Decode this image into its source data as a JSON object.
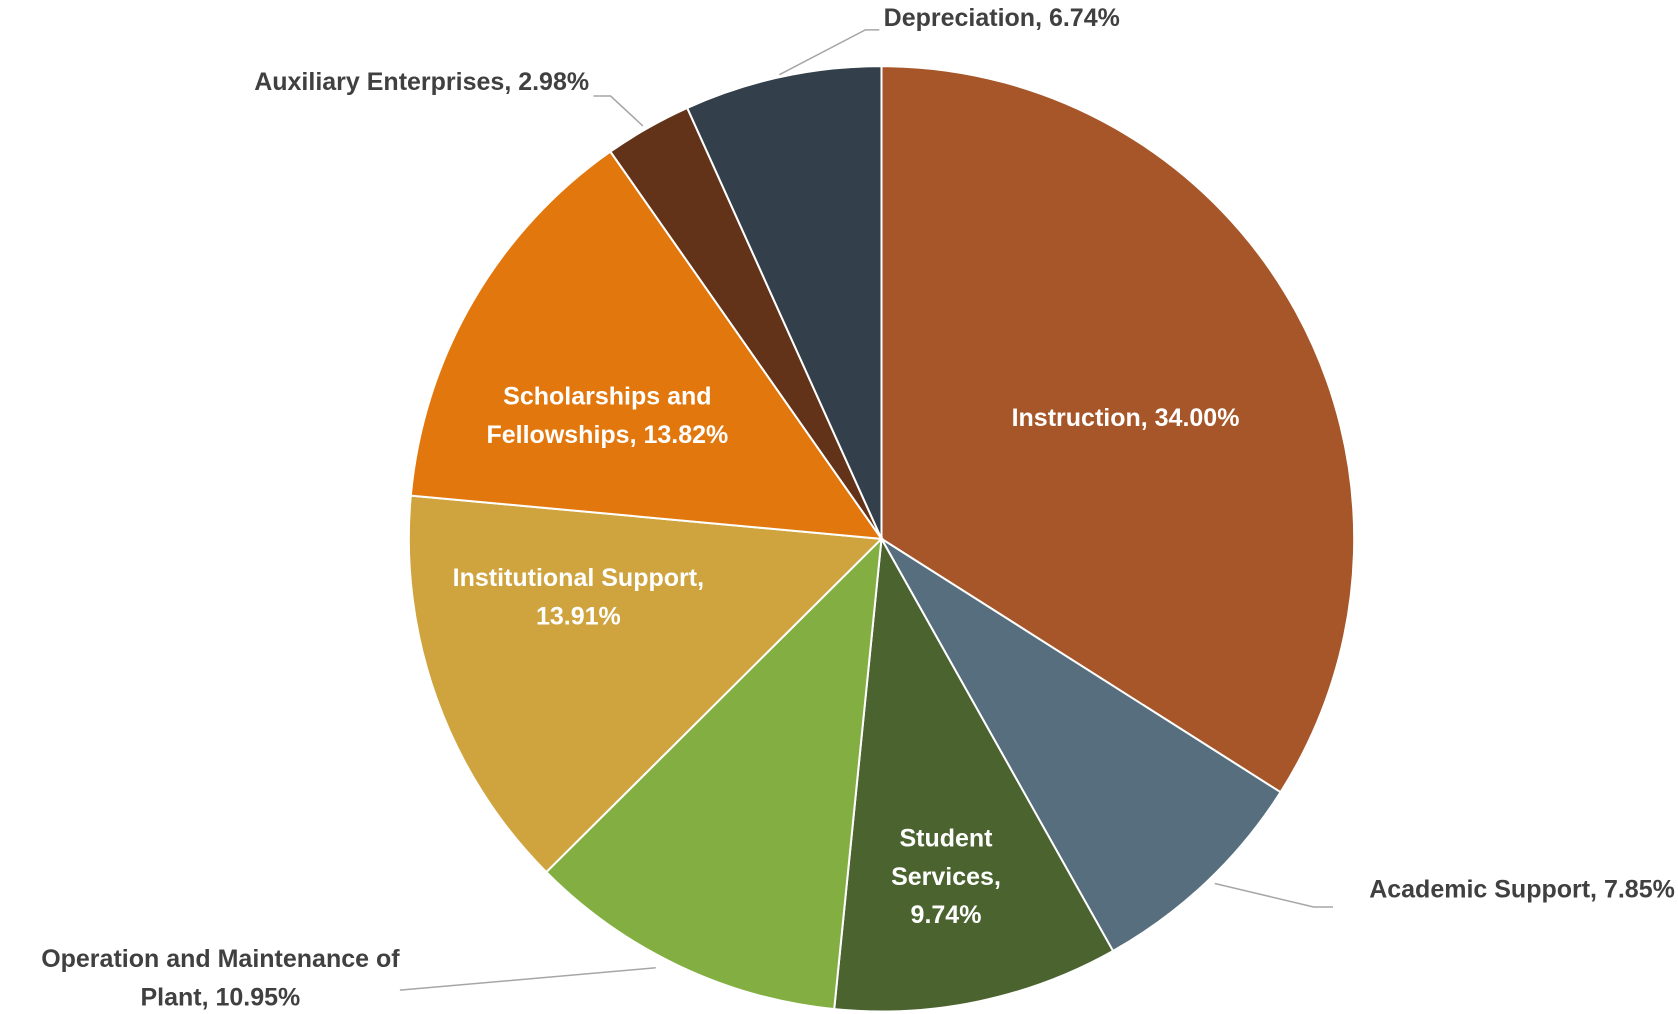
{
  "chart_data": {
    "type": "pie",
    "values": [
      34.0,
      7.85,
      9.74,
      10.95,
      13.91,
      13.82,
      2.98,
      6.74
    ],
    "value_labels": [
      [
        "Instruction, 34.00%"
      ],
      [
        "Academic Support, 7.85%"
      ],
      [
        "Student",
        "Services,",
        "9.74%"
      ],
      [
        "Operation and Maintenance of",
        "Plant, 10.95%"
      ],
      [
        "Institutional Support,",
        "13.91%"
      ],
      [
        "Scholarships and",
        "Fellowships, 13.82%"
      ],
      [
        "Auxiliary Enterprises, 2.98%"
      ],
      [
        "Depreciation, 6.74%"
      ]
    ],
    "colors": [
      "#a65628",
      "#566e7d",
      "#4a632f",
      "#83af42",
      "#cfa43f",
      "#e2780d",
      "#623318",
      "#333f4a"
    ]
  }
}
